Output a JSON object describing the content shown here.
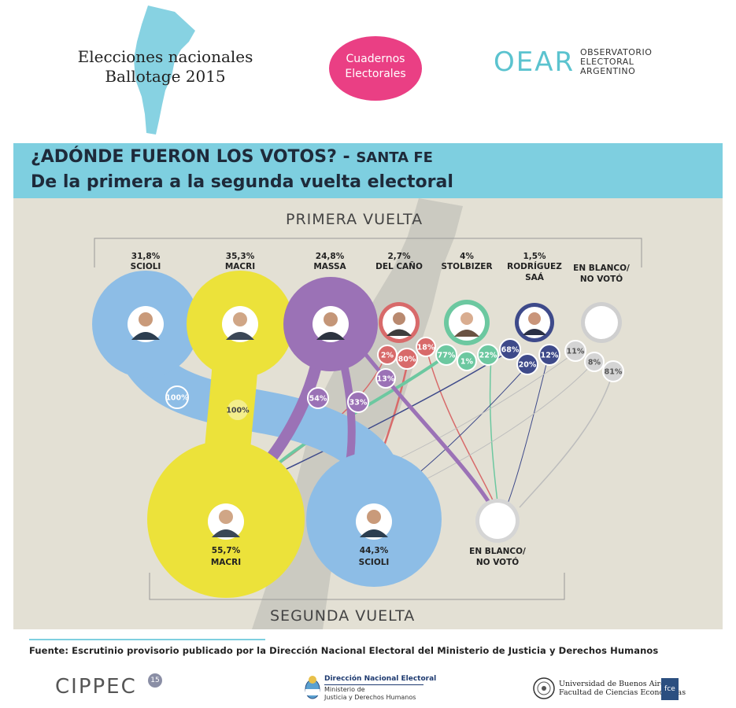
{
  "header": {
    "title_line1": "Elecciones nacionales",
    "title_line2": "Ballotage 2015",
    "badge_line1": "Cuadernos",
    "badge_line2": "Electorales",
    "oear_logo": "OEAR",
    "oear_line1": "OBSERVATORIO",
    "oear_line2": "ELECTORAL",
    "oear_line3": "ARGENTINO"
  },
  "banner": {
    "question": "¿ADÓNDE FUERON LOS VOTOS? -",
    "province": "SANTA FE",
    "subtitle": "De la primera a la segunda vuelta electoral"
  },
  "chart_data": {
    "type": "flow",
    "first_round_label": "PRIMERA VUELTA",
    "second_round_label": "SEGUNDA VUELTA",
    "first_round": [
      {
        "pct": "31,8%",
        "name": "SCIOLI",
        "color": "#8dbde6"
      },
      {
        "pct": "35,3%",
        "name": "MACRI",
        "color": "#ece23a"
      },
      {
        "pct": "24,8%",
        "name": "MASSA",
        "color": "#9b72b6"
      },
      {
        "pct": "2,7%",
        "name": "DEL CAÑO",
        "color": "#d86a6a"
      },
      {
        "pct": "4%",
        "name": "STOLBIZER",
        "color": "#6cc8a0"
      },
      {
        "pct": "1,5%",
        "name": "RODRÍGUEZ",
        "name2": "SAÁ",
        "color": "#3e4a8a"
      },
      {
        "pct": "",
        "name": "EN BLANCO/",
        "name2": "NO VOTÓ",
        "color": "#cccccc"
      }
    ],
    "second_round": [
      {
        "pct": "55,7%",
        "name": "MACRI",
        "color": "#ece23a"
      },
      {
        "pct": "44,3%",
        "name": "SCIOLI",
        "color": "#8dbde6"
      },
      {
        "pct": "",
        "name": "EN BLANCO/",
        "name2": "NO VOTÓ",
        "color": "#cccccc"
      }
    ],
    "transfers": [
      {
        "from": "SCIOLI",
        "to": "SCIOLI",
        "pct": "100%"
      },
      {
        "from": "MACRI",
        "to": "MACRI",
        "pct": "100%"
      },
      {
        "from": "MASSA",
        "to": "MACRI",
        "pct": "54%"
      },
      {
        "from": "MASSA",
        "to": "SCIOLI",
        "pct": "33%"
      },
      {
        "from": "MASSA",
        "to": "EN BLANCO/NO VOTÓ",
        "pct": "13%"
      },
      {
        "from": "DEL CAÑO",
        "to": "MACRI",
        "pct": "2%"
      },
      {
        "from": "DEL CAÑO",
        "to": "SCIOLI",
        "pct": "80%"
      },
      {
        "from": "DEL CAÑO",
        "to": "EN BLANCO/NO VOTÓ",
        "pct": "18%"
      },
      {
        "from": "STOLBIZER",
        "to": "MACRI",
        "pct": "77%"
      },
      {
        "from": "STOLBIZER",
        "to": "SCIOLI",
        "pct": "1%"
      },
      {
        "from": "STOLBIZER",
        "to": "EN BLANCO/NO VOTÓ",
        "pct": "22%"
      },
      {
        "from": "RODRÍGUEZ SAÁ",
        "to": "MACRI",
        "pct": "68%"
      },
      {
        "from": "RODRÍGUEZ SAÁ",
        "to": "SCIOLI",
        "pct": "20%"
      },
      {
        "from": "RODRÍGUEZ SAÁ",
        "to": "EN BLANCO/NO VOTÓ",
        "pct": "12%"
      },
      {
        "from": "EN BLANCO/NO VOTÓ",
        "to": "MACRI",
        "pct": "11%"
      },
      {
        "from": "EN BLANCO/NO VOTÓ",
        "to": "SCIOLI",
        "pct": "8%"
      },
      {
        "from": "EN BLANCO/NO VOTÓ",
        "to": "EN BLANCO/NO VOTÓ",
        "pct": "81%"
      }
    ]
  },
  "footer": {
    "source": "Fuente: Escrutinio provisorio publicado por la Dirección Nacional Electoral del Ministerio de Justicia y Derechos Humanos",
    "cippec": "CIPPEC",
    "cippec_badge": "15",
    "dne_line1": "Dirección Nacional Electoral",
    "dne_line2": "Ministerio de",
    "dne_line3": "Justicia y Derechos Humanos",
    "uba_line1": "Universidad de Buenos Aires",
    "uba_line2": "Facultad de Ciencias Económicas",
    "fce": "fce"
  },
  "colors": {
    "scioli": "#8dbde6",
    "macri": "#ece23a",
    "massa": "#9b72b6",
    "delcano": "#d86a6a",
    "stolbizer": "#6cc8a0",
    "rodriguez": "#3e4a8a",
    "blank": "#cccccc",
    "banner": "#7ecfe0",
    "background": "#e3e0d4",
    "pink": "#ea3f84",
    "teal": "#5bc3cf"
  }
}
